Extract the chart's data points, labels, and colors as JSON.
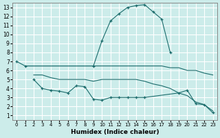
{
  "xlabel": "Humidex (Indice chaleur)",
  "background_color": "#ccecea",
  "grid_color": "#ffffff",
  "line_color": "#1a6b6b",
  "x_ticks": [
    0,
    1,
    2,
    3,
    4,
    5,
    6,
    7,
    8,
    9,
    10,
    11,
    12,
    13,
    14,
    15,
    16,
    17,
    18,
    19,
    20,
    21,
    22,
    23
  ],
  "y_ticks": [
    1,
    2,
    3,
    4,
    5,
    6,
    7,
    8,
    9,
    10,
    11,
    12,
    13
  ],
  "xlim": [
    -0.5,
    23.5
  ],
  "ylim": [
    0.5,
    13.5
  ],
  "series": [
    {
      "x": [
        0,
        1,
        9,
        10,
        11,
        12,
        13,
        14,
        15,
        16,
        17,
        18
      ],
      "y": [
        7.0,
        6.5,
        6.5,
        9.3,
        11.5,
        12.3,
        13.0,
        13.2,
        13.3,
        12.5,
        11.7,
        8.0
      ],
      "has_marker": true
    },
    {
      "x": [
        1,
        2,
        9,
        10,
        11,
        12,
        13,
        14,
        15,
        16,
        17,
        18,
        19,
        20,
        21,
        22,
        23
      ],
      "y": [
        6.5,
        6.5,
        6.5,
        6.5,
        6.5,
        6.5,
        6.5,
        6.5,
        6.5,
        6.5,
        6.5,
        6.3,
        6.3,
        6.0,
        6.0,
        5.7,
        5.5
      ],
      "has_marker": false
    },
    {
      "x": [
        2,
        3,
        4,
        5,
        6,
        7,
        8,
        9,
        10,
        11,
        12,
        13,
        14,
        15,
        16,
        17,
        18,
        19,
        20,
        21,
        22,
        23
      ],
      "y": [
        5.5,
        5.5,
        5.2,
        5.0,
        5.0,
        5.0,
        5.0,
        4.8,
        5.0,
        5.0,
        5.0,
        5.0,
        5.0,
        4.8,
        4.5,
        4.3,
        4.0,
        3.5,
        3.2,
        2.5,
        2.2,
        1.5
      ],
      "has_marker": false
    },
    {
      "x": [
        2,
        3,
        4,
        5,
        6,
        7,
        8,
        9,
        10,
        11,
        12,
        13,
        14,
        15,
        19,
        20,
        21,
        22,
        23
      ],
      "y": [
        5.0,
        4.0,
        3.8,
        3.7,
        3.5,
        4.3,
        4.2,
        2.8,
        2.7,
        3.0,
        3.0,
        3.0,
        3.0,
        3.0,
        3.5,
        3.8,
        2.3,
        2.2,
        1.3
      ],
      "has_marker": true
    }
  ]
}
